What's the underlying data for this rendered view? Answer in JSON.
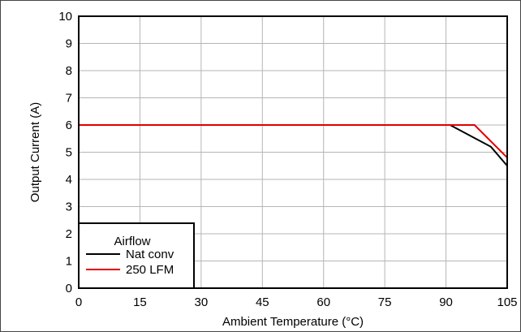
{
  "chart_data": {
    "type": "line",
    "title": "",
    "xlabel": "Ambient Temperature (°C)",
    "ylabel": "Output Current (A)",
    "xlim": [
      0,
      105
    ],
    "ylim": [
      0,
      10
    ],
    "xticks": [
      0,
      15,
      30,
      45,
      60,
      75,
      90,
      105
    ],
    "yticks": [
      0,
      1,
      2,
      3,
      4,
      5,
      6,
      7,
      8,
      9,
      10
    ],
    "grid": true,
    "legend": {
      "title": "Airflow",
      "placement": "bottom-left"
    },
    "series": [
      {
        "name": "Nat conv",
        "color": "#000000",
        "x": [
          0,
          91,
          101,
          105
        ],
        "y": [
          6,
          6,
          5.2,
          4.5
        ]
      },
      {
        "name": "250 LFM",
        "color": "#e00000",
        "x": [
          0,
          97,
          105
        ],
        "y": [
          6,
          6,
          4.8
        ]
      }
    ]
  }
}
